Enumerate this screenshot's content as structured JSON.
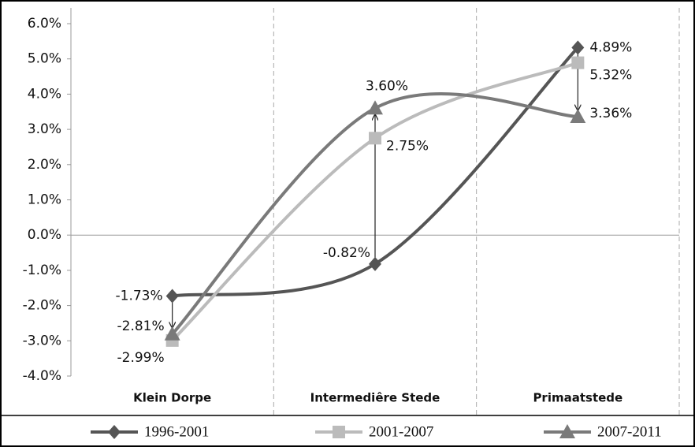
{
  "chart_data": {
    "type": "line",
    "categories": [
      "Klein Dorpe",
      "Intermediêre Stede",
      "Primaatstede"
    ],
    "series": [
      {
        "name": "1996-2001",
        "color": "#555555",
        "marker": "diamond",
        "values": [
          -1.73,
          -0.82,
          5.32
        ],
        "value_labels": [
          "-1.73%",
          "-0.82%",
          "5.32%"
        ]
      },
      {
        "name": "2001-2007",
        "color": "#bbbbbb",
        "marker": "square",
        "values": [
          -2.99,
          2.75,
          4.89
        ],
        "value_labels": [
          "-2.99%",
          "2.75%",
          "4.89%"
        ]
      },
      {
        "name": "2007-2011",
        "color": "#7a7a7a",
        "marker": "triangle",
        "values": [
          -2.81,
          3.6,
          3.36
        ],
        "value_labels": [
          "-2.81%",
          "3.60%",
          "3.36%"
        ]
      }
    ],
    "ylim": [
      -4,
      6
    ],
    "yticks": [
      {
        "value": -4,
        "label": "-4.0%"
      },
      {
        "value": -3,
        "label": "-3.0%"
      },
      {
        "value": -2,
        "label": "-2.0%"
      },
      {
        "value": -1,
        "label": "-1.0%"
      },
      {
        "value": 0,
        "label": "0.0%"
      },
      {
        "value": 1,
        "label": "1.0%"
      },
      {
        "value": 2,
        "label": "2.0%"
      },
      {
        "value": 3,
        "label": "3.0%"
      },
      {
        "value": 4,
        "label": "4.0%"
      },
      {
        "value": 5,
        "label": "5.0%"
      },
      {
        "value": 6,
        "label": "6.0%"
      }
    ],
    "smooth": true,
    "legend": "bottom"
  }
}
